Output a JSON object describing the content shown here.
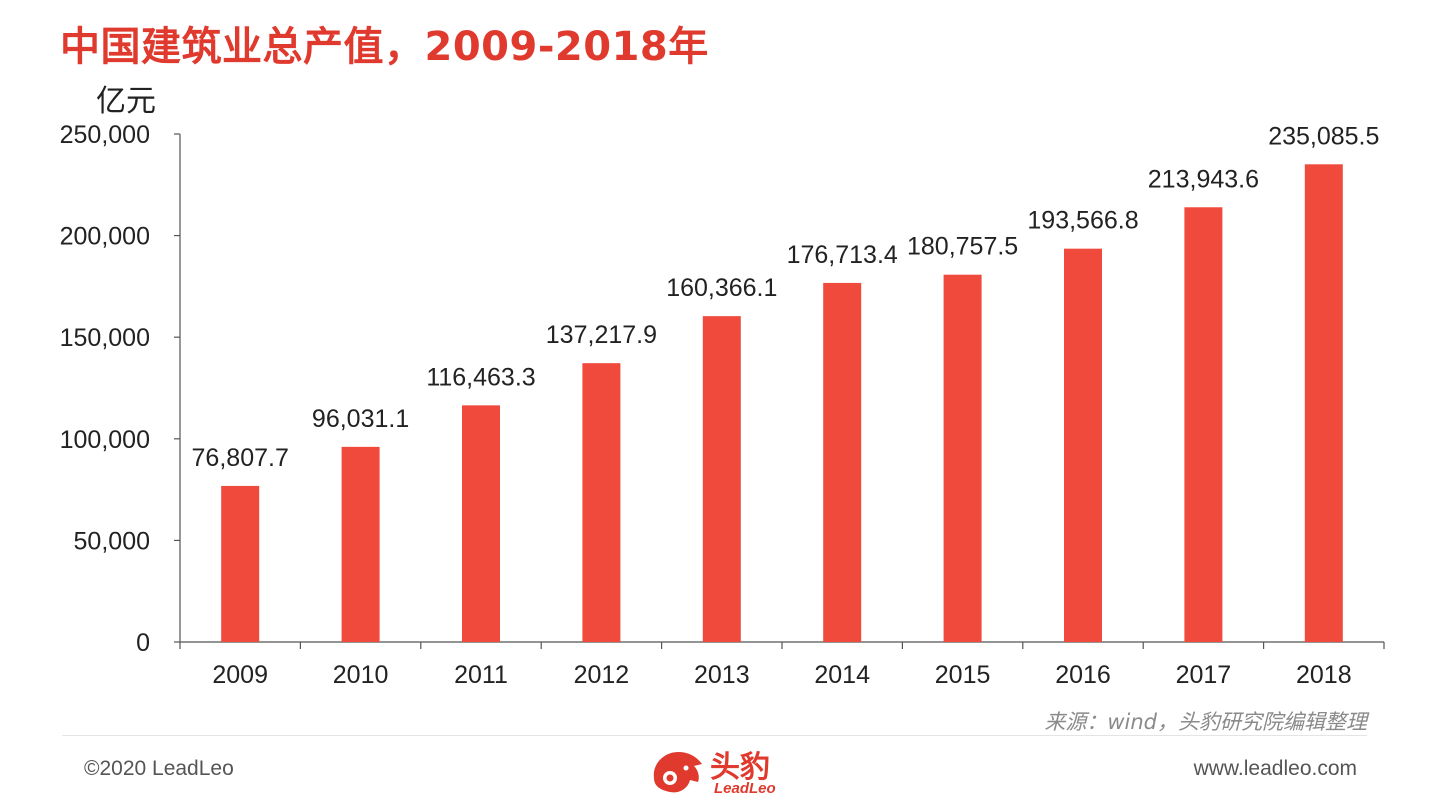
{
  "header": {
    "title": "中国建筑业总产值，2009-2018年",
    "unit": "亿元"
  },
  "chart_data": {
    "type": "bar",
    "title": "中国建筑业总产值，2009-2018年",
    "ylabel": "亿元",
    "xlabel": "",
    "categories": [
      "2009",
      "2010",
      "2011",
      "2012",
      "2013",
      "2014",
      "2015",
      "2016",
      "2017",
      "2018"
    ],
    "values": [
      76807.7,
      96031.1,
      116463.3,
      137217.9,
      160366.1,
      176713.4,
      180757.5,
      193566.8,
      213943.6,
      235085.5
    ],
    "value_labels": [
      "76,807.7",
      "96,031.1",
      "116,463.3",
      "137,217.9",
      "160,366.1",
      "176,713.4",
      "180,757.5",
      "193,566.8",
      "213,943.6",
      "235,085.5"
    ],
    "yticks": [
      0,
      50000,
      100000,
      150000,
      200000,
      250000
    ],
    "ytick_labels": [
      "0",
      "50,000",
      "100,000",
      "150,000",
      "200,000",
      "250,000"
    ],
    "ylim": [
      0,
      250000
    ],
    "grid": false,
    "bar_color": "#ef4a3c"
  },
  "footer": {
    "source": "来源：wind，头豹研究院编辑整理",
    "copyright": "©2020 LeadLeo",
    "website": "www.leadleo.com",
    "logo_cn": "头豹",
    "logo_en": "LeadLeo"
  }
}
